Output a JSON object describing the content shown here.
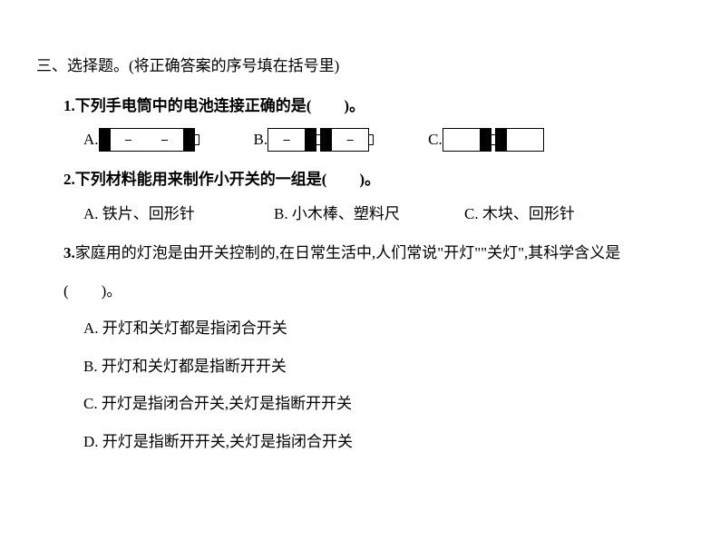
{
  "section": {
    "title": "三、选择题。(将正确答案的序号填在括号里)"
  },
  "q1": {
    "number": "1.",
    "text": "下列手电筒中的电池连接正确的是(",
    "text_end": ")。",
    "options": {
      "a": "A.",
      "b": "B.",
      "c": "C."
    },
    "minus": "–"
  },
  "q2": {
    "number": "2.",
    "text": "下列材料能用来制作小开关的一组是(",
    "text_end": ")。",
    "options": {
      "a": "A. 铁片、回形针",
      "b": "B. 小木棒、塑料尺",
      "c": "C. 木块、回形针"
    }
  },
  "q3": {
    "number": "3.",
    "text": "家庭用的灯泡是由开关控制的,在日常生活中,人们常说\"开灯\"\"关灯\",其科学含义是",
    "paren": "(",
    "paren_end": ")。",
    "options": {
      "a": "A. 开灯和关灯都是指闭合开关",
      "b": "B. 开灯和关灯都是指断开开关",
      "c": "C. 开灯是指闭合开关,关灯是指断开开关",
      "d": "D. 开灯是指断开开关,关灯是指闭合开关"
    }
  }
}
